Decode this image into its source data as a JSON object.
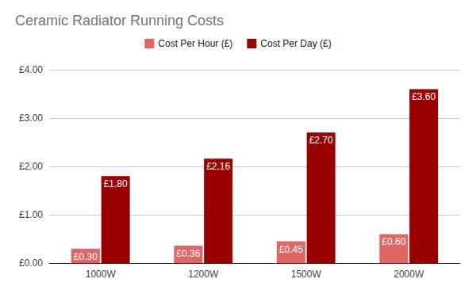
{
  "chart_data": {
    "type": "bar",
    "title": "Ceramic Radiator Running Costs",
    "categories": [
      "1000W",
      "1200W",
      "1500W",
      "2000W"
    ],
    "series": [
      {
        "name": "Cost Per Hour (£)",
        "color": "#e06666",
        "values": [
          0.3,
          0.36,
          0.45,
          0.6
        ],
        "value_labels": [
          "£0.30",
          "£0.36",
          "£0.45",
          "£0.60"
        ]
      },
      {
        "name": "Cost Per Day (£)",
        "color": "#990000",
        "values": [
          1.8,
          2.16,
          2.7,
          3.6
        ],
        "value_labels": [
          "£1.80",
          "£2.16",
          "£2.70",
          "£3.60"
        ]
      }
    ],
    "ylim": [
      0,
      4
    ],
    "yticks": [
      {
        "value": 0,
        "label": "£0.00"
      },
      {
        "value": 1,
        "label": "£1.00"
      },
      {
        "value": 2,
        "label": "£2.00"
      },
      {
        "value": 3,
        "label": "£3.00"
      },
      {
        "value": 4,
        "label": "£4.00"
      }
    ],
    "grid": true,
    "legend": "top",
    "data_labels": true
  }
}
